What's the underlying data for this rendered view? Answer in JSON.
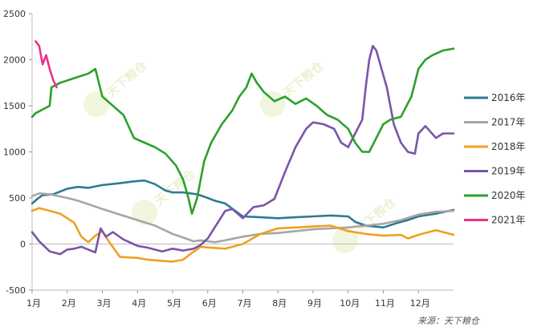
{
  "chart_data": {
    "type": "line",
    "title": "",
    "xlabel": "",
    "ylabel": "",
    "ylim": [
      -500,
      2500
    ],
    "xlim": [
      1,
      13
    ],
    "yticks": [
      -500,
      0,
      500,
      1000,
      1500,
      2000,
      2500
    ],
    "yticks_text": [
      "-500",
      "0",
      "500",
      "1000",
      "1500",
      "2000",
      "2500"
    ],
    "xticks": [
      1,
      2,
      3,
      4,
      5,
      6,
      7,
      8,
      9,
      10,
      11,
      12
    ],
    "xticks_text": [
      "1月",
      "2月",
      "3月",
      "4月",
      "5月",
      "6月",
      "7月",
      "8月",
      "9月",
      "10月",
      "11月",
      "12月"
    ],
    "grid": false,
    "legend_position": "right",
    "series": [
      {
        "name": "2016年",
        "color": "#2e7a94",
        "x": [
          1,
          1.15,
          1.3,
          1.6,
          2.0,
          2.3,
          2.6,
          3.0,
          3.5,
          3.9,
          4.2,
          4.5,
          4.8,
          5.0,
          5.3,
          5.7,
          6.0,
          6.2,
          6.5,
          7.0,
          7.5,
          8.0,
          8.5,
          9.0,
          9.5,
          10.0,
          10.2,
          10.5,
          11.0,
          11.4,
          11.7,
          12.0,
          12.5,
          13.0
        ],
        "y": [
          440,
          490,
          530,
          540,
          600,
          620,
          610,
          640,
          660,
          680,
          690,
          650,
          580,
          560,
          560,
          540,
          500,
          470,
          440,
          300,
          290,
          280,
          290,
          300,
          310,
          300,
          240,
          200,
          180,
          230,
          260,
          300,
          330,
          370
        ]
      },
      {
        "name": "2017年",
        "color": "#a6a6a6",
        "x": [
          1,
          1.2,
          1.5,
          2.0,
          2.3,
          2.7,
          3.0,
          3.5,
          4.0,
          4.5,
          5.0,
          5.3,
          5.6,
          5.8,
          6.2,
          6.5,
          7.0,
          7.5,
          8.0,
          8.5,
          9.0,
          9.5,
          10.0,
          10.5,
          11.0,
          11.5,
          12.0,
          12.5,
          13.0
        ],
        "y": [
          520,
          550,
          540,
          500,
          470,
          420,
          380,
          320,
          260,
          200,
          110,
          70,
          30,
          40,
          20,
          40,
          80,
          110,
          120,
          140,
          160,
          170,
          180,
          200,
          220,
          260,
          320,
          350,
          360
        ]
      },
      {
        "name": "2018年",
        "color": "#f0a020",
        "x": [
          1,
          1.2,
          1.5,
          1.8,
          2.0,
          2.2,
          2.4,
          2.6,
          2.8,
          3.0,
          3.2,
          3.5,
          4.0,
          4.3,
          4.6,
          5.0,
          5.3,
          5.5,
          5.8,
          6.1,
          6.5,
          7.0,
          7.5,
          8.0,
          8.5,
          9.0,
          9.5,
          10.0,
          10.5,
          11.0,
          11.5,
          11.7,
          12.0,
          12.5,
          13.0
        ],
        "y": [
          360,
          390,
          360,
          330,
          280,
          230,
          80,
          20,
          90,
          140,
          20,
          -140,
          -150,
          -170,
          -180,
          -190,
          -170,
          -110,
          -30,
          -40,
          -50,
          0,
          110,
          170,
          180,
          190,
          200,
          140,
          110,
          90,
          100,
          60,
          100,
          150,
          100
        ]
      },
      {
        "name": "2019年",
        "color": "#7b55a8",
        "x": [
          1,
          1.2,
          1.5,
          1.8,
          2.0,
          2.2,
          2.4,
          2.6,
          2.8,
          2.95,
          3.1,
          3.3,
          3.6,
          4.0,
          4.3,
          4.7,
          5.0,
          5.3,
          5.6,
          5.8,
          6.0,
          6.2,
          6.5,
          6.7,
          7.0,
          7.3,
          7.6,
          7.9,
          8.2,
          8.5,
          8.8,
          9.0,
          9.3,
          9.6,
          9.8,
          10.0,
          10.2,
          10.4,
          10.5,
          10.6,
          10.7,
          10.8,
          10.95,
          11.1,
          11.3,
          11.5,
          11.7,
          11.9,
          12.0,
          12.2,
          12.5,
          12.7,
          13.0
        ],
        "y": [
          130,
          30,
          -80,
          -110,
          -60,
          -50,
          -30,
          -60,
          -90,
          170,
          80,
          130,
          50,
          -20,
          -40,
          -80,
          -50,
          -70,
          -50,
          -10,
          60,
          180,
          360,
          380,
          280,
          400,
          420,
          490,
          780,
          1050,
          1250,
          1320,
          1300,
          1250,
          1100,
          1050,
          1200,
          1350,
          1700,
          2000,
          2150,
          2100,
          1900,
          1700,
          1300,
          1100,
          1000,
          980,
          1200,
          1280,
          1150,
          1200,
          1200
        ]
      },
      {
        "name": "2020年",
        "color": "#2ca02c",
        "x": [
          1,
          1.1,
          1.3,
          1.5,
          1.55,
          1.8,
          2.2,
          2.6,
          2.8,
          3.0,
          3.3,
          3.6,
          3.9,
          4.2,
          4.5,
          4.8,
          5.1,
          5.3,
          5.45,
          5.55,
          5.7,
          5.9,
          6.1,
          6.4,
          6.7,
          6.9,
          7.1,
          7.25,
          7.4,
          7.6,
          7.9,
          8.2,
          8.5,
          8.8,
          9.1,
          9.4,
          9.7,
          10.0,
          10.2,
          10.4,
          10.6,
          10.8,
          11.0,
          11.2,
          11.5,
          11.8,
          12.0,
          12.2,
          12.4,
          12.7,
          13.0
        ],
        "y": [
          1380,
          1420,
          1460,
          1500,
          1700,
          1750,
          1800,
          1850,
          1900,
          1600,
          1500,
          1400,
          1150,
          1100,
          1050,
          980,
          850,
          700,
          500,
          330,
          500,
          900,
          1100,
          1300,
          1450,
          1600,
          1700,
          1850,
          1750,
          1650,
          1550,
          1600,
          1520,
          1580,
          1500,
          1400,
          1350,
          1250,
          1100,
          1000,
          1000,
          1150,
          1300,
          1350,
          1380,
          1600,
          1900,
          2000,
          2050,
          2100,
          2120
        ]
      },
      {
        "name": "2021年",
        "color": "#e8338a",
        "x": [
          1.1,
          1.2,
          1.3,
          1.4,
          1.5,
          1.6,
          1.7
        ],
        "y": [
          2200,
          2150,
          1950,
          2050,
          1900,
          1780,
          1700
        ]
      }
    ],
    "source": "来源：天下粮仓",
    "watermark": "天下粮仓"
  }
}
